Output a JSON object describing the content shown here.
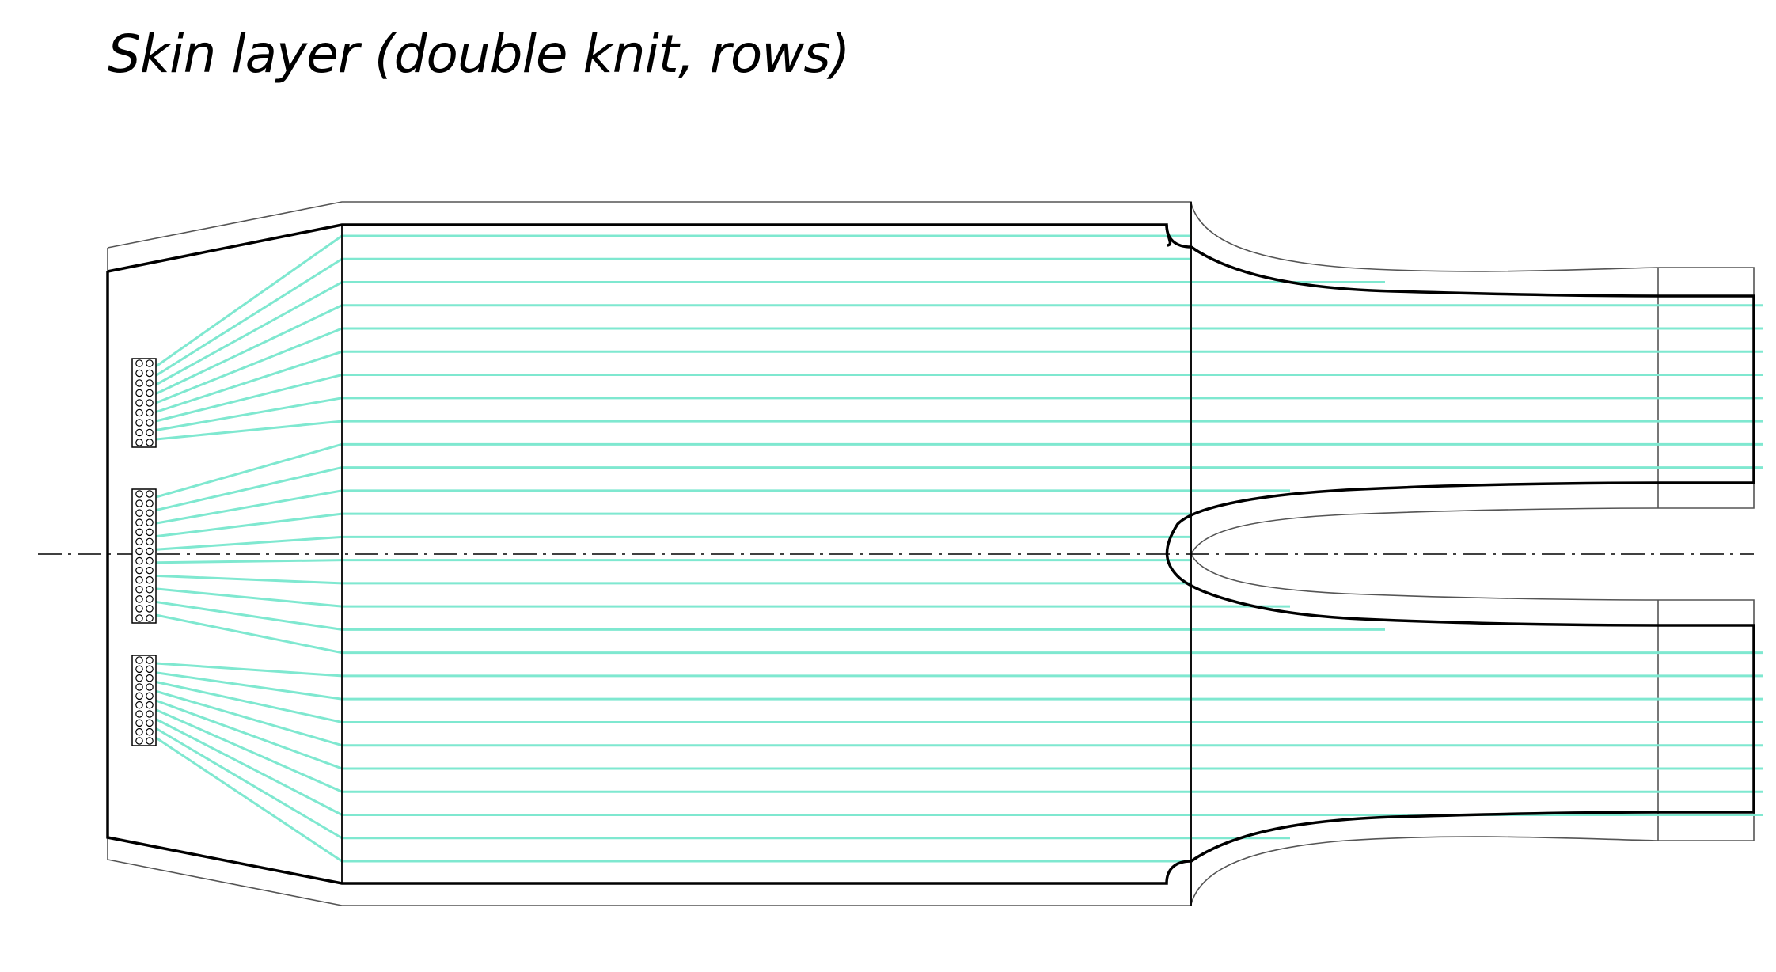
{
  "title": "Skin layer (double knit, rows)",
  "colors": {
    "row_line": "#7fe8d0",
    "outline": "#000000",
    "thin_outline": "#555555",
    "background": "#ffffff"
  },
  "elements": {
    "title_text": "title",
    "outer_outline": "thin outline",
    "inner_outline": "bold outline",
    "centerline": "dash-dot centerline",
    "yarn_carriers": [
      "yarn-carrier-top",
      "yarn-carrier-middle",
      "yarn-carrier-bottom"
    ]
  }
}
